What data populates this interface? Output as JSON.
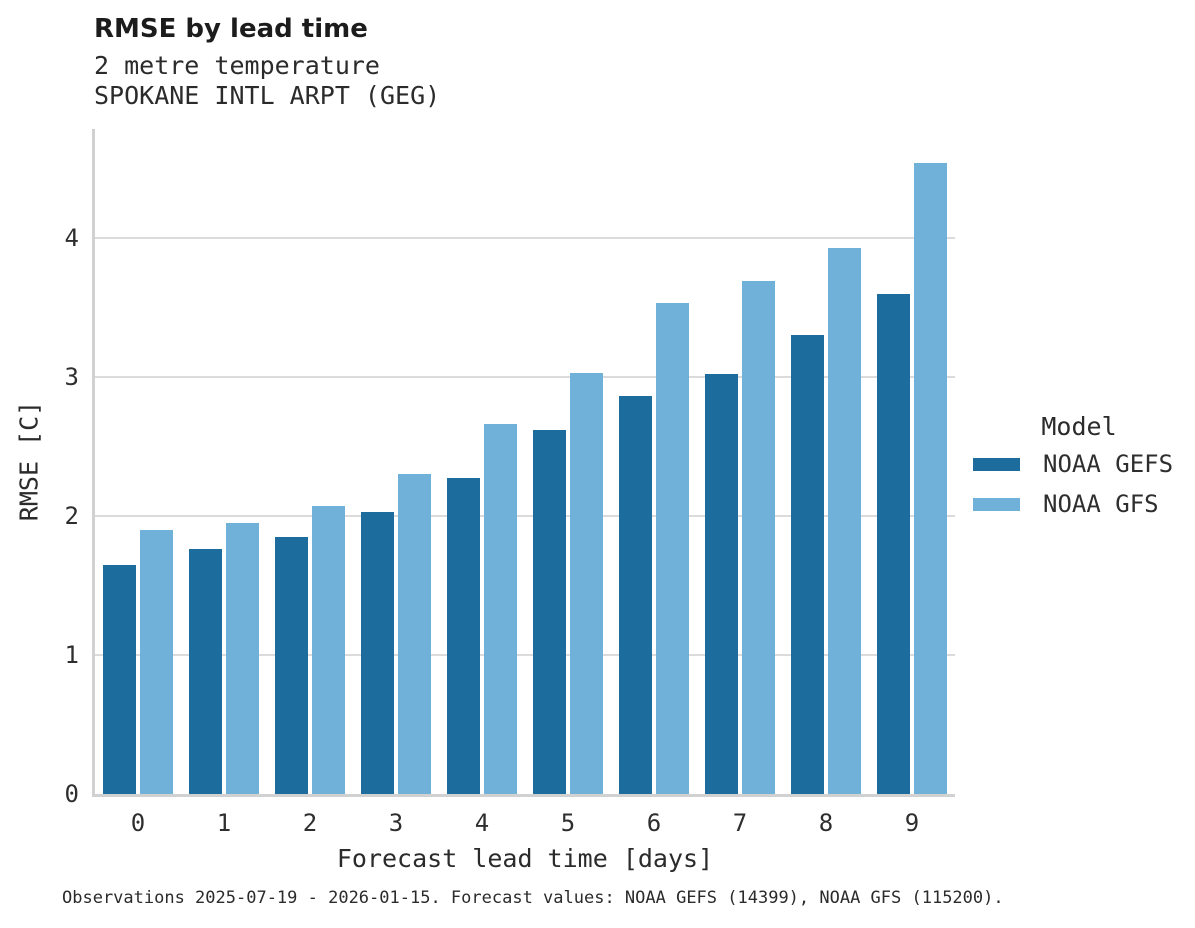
{
  "header": {
    "title": "RMSE by lead time",
    "subtitle_variable": "2 metre temperature",
    "subtitle_station": "SPOKANE INTL ARPT (GEG)"
  },
  "chart_data": {
    "type": "bar",
    "title": "RMSE by lead time",
    "subtitle_lines": [
      "2 metre temperature",
      "SPOKANE INTL ARPT (GEG)"
    ],
    "categories": [
      "0",
      "1",
      "2",
      "3",
      "4",
      "5",
      "6",
      "7",
      "8",
      "9"
    ],
    "series": [
      {
        "name": "NOAA GEFS",
        "color": "#1c6d9d",
        "values": [
          1.65,
          1.76,
          1.85,
          2.03,
          2.27,
          2.62,
          2.86,
          3.02,
          3.3,
          3.6
        ]
      },
      {
        "name": "NOAA GFS",
        "color": "#6fb1d9",
        "values": [
          1.9,
          1.95,
          2.07,
          2.3,
          2.66,
          3.03,
          3.53,
          3.69,
          3.93,
          4.54
        ]
      }
    ],
    "xlabel": "Forecast lead time [days]",
    "ylabel": "RMSE [C]",
    "yticks": [
      0,
      1,
      2,
      3,
      4
    ],
    "ylim": [
      0,
      4.78
    ],
    "grid": true,
    "legend": {
      "title": "Model",
      "position": "right"
    }
  },
  "caption": "Observations 2025-07-19 - 2026-01-15. Forecast values: NOAA GEFS (14399), NOAA GFS (115200)."
}
